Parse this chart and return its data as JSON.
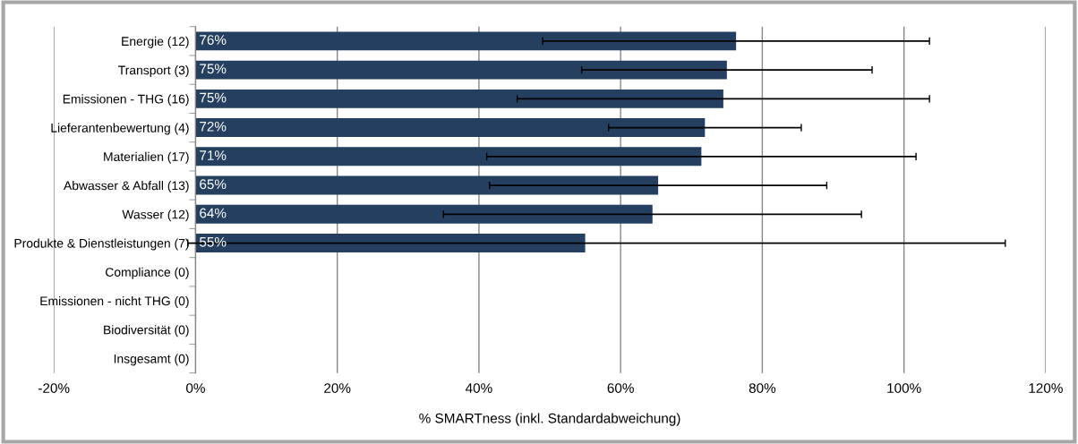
{
  "chart_data": {
    "type": "bar",
    "orientation": "horizontal",
    "xlabel": "% SMARTness (inkl. Standardabweichung)",
    "categories": [
      "Energie (12)",
      "Transport (3)",
      "Emissionen - THG (16)",
      "Lieferantenbewertung (4)",
      "Materialien (17)",
      "Abwasser & Abfall (13)",
      "Wasser (12)",
      "Produkte & Dienstleistungen (7)",
      "Compliance (0)",
      "Emissionen - nicht THG (0)",
      "Biodiversität (0)",
      "Insgesamt (0)"
    ],
    "values": [
      76.3,
      75.0,
      74.5,
      71.9,
      71.4,
      65.3,
      64.5,
      55.0,
      0,
      0,
      0,
      0
    ],
    "errors": [
      27.3,
      20.5,
      29.1,
      13.6,
      30.3,
      23.8,
      29.5,
      [
        -1.1,
        114.3
      ],
      null,
      null,
      null,
      null
    ],
    "value_labels": [
      "76%",
      "75%",
      "75%",
      "72%",
      "71%",
      "65%",
      "64%",
      "55%",
      null,
      null,
      null,
      null
    ],
    "color": "#243f60",
    "xlim": [
      -20,
      120
    ],
    "xticks": [
      {
        "value": -20,
        "label": "-20%"
      },
      {
        "value": 0,
        "label": "0%"
      },
      {
        "value": 20,
        "label": "20%"
      },
      {
        "value": 40,
        "label": "40%"
      },
      {
        "value": 60,
        "label": "60%"
      },
      {
        "value": 80,
        "label": "80%"
      },
      {
        "value": 100,
        "label": "100%"
      },
      {
        "value": 120,
        "label": "120%"
      }
    ],
    "grid": "x",
    "legend": false
  }
}
